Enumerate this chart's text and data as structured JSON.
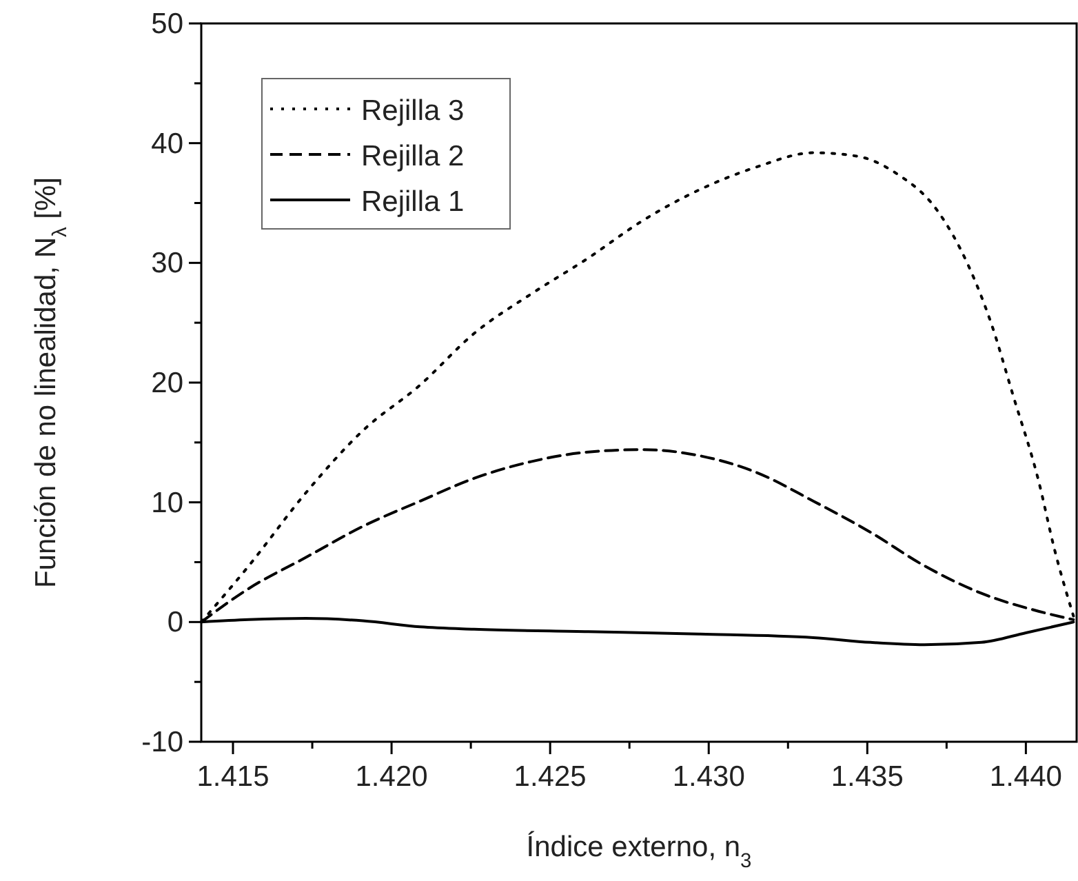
{
  "chart_data": {
    "type": "line",
    "xlabel": "Índice externo, n$_{3}$",
    "ylabel": "Función de no linealidad, N$_{λ}$ [%]",
    "xlim": [
      1.414,
      1.4416
    ],
    "xticks": [
      1.415,
      {
        "value": 1.4175,
        "label": null
      },
      {
        "value": 1.42,
        "label": "1.420"
      },
      {
        "value": 1.4225,
        "label": null
      },
      1.425,
      {
        "value": 1.4275,
        "label": null
      },
      {
        "value": 1.43,
        "label": "1.430"
      },
      {
        "value": 1.4325,
        "label": null
      },
      1.435,
      {
        "value": 1.4375,
        "label": null
      },
      {
        "value": 1.44,
        "label": "1.440"
      }
    ],
    "ylim": [
      -10,
      50
    ],
    "yticks": [
      -10,
      {
        "value": -5,
        "label": null
      },
      0,
      {
        "value": 5,
        "label": null
      },
      10,
      {
        "value": 15,
        "label": null
      },
      20,
      {
        "value": 25,
        "label": null
      },
      30,
      {
        "value": 35,
        "label": null
      },
      40,
      {
        "value": 45,
        "label": null
      },
      50
    ],
    "grid": false,
    "legend": "top left",
    "series": [
      {
        "name": "Rejilla 3",
        "color": "#000000",
        "line_style": "dotted",
        "x": [
          1.414,
          1.4155,
          1.4173,
          1.4191,
          1.4209,
          1.4226,
          1.4244,
          1.4262,
          1.4279,
          1.4297,
          1.4315,
          1.4333,
          1.4347,
          1.4359,
          1.4372,
          1.4382,
          1.4389,
          1.4396,
          1.4404,
          1.4409,
          1.4415
        ],
        "values": [
          0,
          4.7,
          10.8,
          16.0,
          19.8,
          24.1,
          27.4,
          30.4,
          33.5,
          36.1,
          38.0,
          39.2,
          38.9,
          37.5,
          34.4,
          29.7,
          25.0,
          18.9,
          11.8,
          6.1,
          0.5
        ]
      },
      {
        "name": "Rejilla 2",
        "color": "#000000",
        "line_style": "dashed",
        "x": [
          1.414,
          1.4155,
          1.4173,
          1.4191,
          1.4209,
          1.4226,
          1.4244,
          1.4262,
          1.4279,
          1.4297,
          1.4315,
          1.4333,
          1.4351,
          1.4368,
          1.4386,
          1.4404,
          1.4415
        ],
        "values": [
          0,
          2.8,
          5.4,
          8.0,
          10.1,
          12.0,
          13.4,
          14.2,
          14.4,
          13.9,
          12.5,
          10.1,
          7.5,
          4.7,
          2.4,
          0.9,
          0.2
        ]
      },
      {
        "name": "Rejilla 1",
        "color": "#000000",
        "line_style": "solid",
        "x": [
          1.414,
          1.4155,
          1.4173,
          1.4191,
          1.4209,
          1.4226,
          1.4262,
          1.4297,
          1.4333,
          1.4351,
          1.4368,
          1.4386,
          1.44,
          1.4415
        ],
        "values": [
          0,
          0.2,
          0.3,
          0.1,
          -0.4,
          -0.6,
          -0.8,
          -1.0,
          -1.3,
          -1.7,
          -1.9,
          -1.7,
          -0.9,
          0
        ]
      }
    ]
  }
}
